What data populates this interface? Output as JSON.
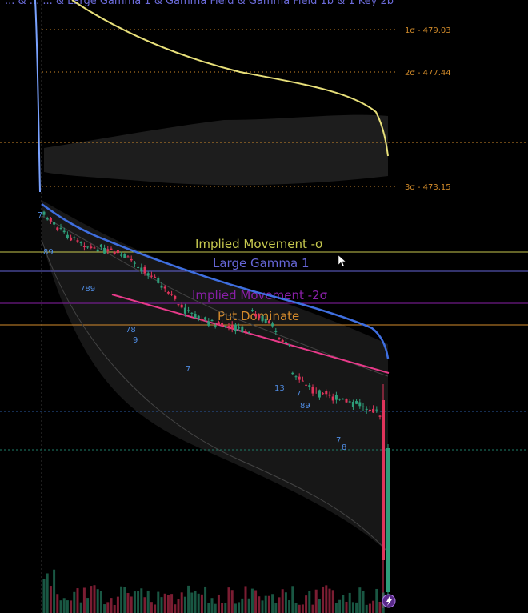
{
  "header": {
    "title": "... & ... ... & Large Gamma 1 & Gamma Field & Gamma Field 1b & 1 Key 2b"
  },
  "colors": {
    "background": "#000000",
    "up": "#2e9e7a",
    "down": "#e0345b",
    "yellow_line": "#e8e07a",
    "blue_line": "#3f6fe0",
    "trend_line": "#e83a8a",
    "sigma_level": "#d08a2a",
    "implied_movement": "#c7c94f",
    "large_gamma": "#6666d8",
    "implied_movement_2": "#8a1fa8",
    "put_dominate": "#d58b2c",
    "count_label": "#4f8be0",
    "dotted": "#1e7e6a"
  },
  "levels": [
    {
      "label": "1σ - 479.03",
      "price": 479.03
    },
    {
      "label": "2σ - 477.44",
      "price": 477.44
    },
    {
      "label": "3σ - 473.15",
      "price": 473.15
    }
  ],
  "bands": [
    {
      "label": "Implied Movement -σ",
      "color_key": "implied_movement"
    },
    {
      "label": "Large Gamma 1",
      "color_key": "large_gamma"
    },
    {
      "label": "Implied Movement -2σ",
      "color_key": "implied_movement_2"
    },
    {
      "label": "Put Dominate",
      "color_key": "put_dominate"
    }
  ],
  "counts": [
    "7",
    "89",
    "789",
    "78",
    "9",
    "7",
    "13",
    "7",
    "89",
    "7",
    "8"
  ],
  "chart_data": {
    "type": "candlestick",
    "ohlc_trend": "price falls sharply at the open, then grinds lower through the session inside a downward Bollinger-style channel, with a late wick spike and volume surge at the close",
    "levels": [
      479.03,
      477.44,
      473.15
    ],
    "level_labels": [
      "1σ - 479.03",
      "2σ - 477.44",
      "3σ - 473.15"
    ],
    "annotations": [
      "Implied Movement -σ",
      "Large Gamma 1",
      "Implied Movement -2σ",
      "Put Dominate"
    ],
    "grid": false
  }
}
